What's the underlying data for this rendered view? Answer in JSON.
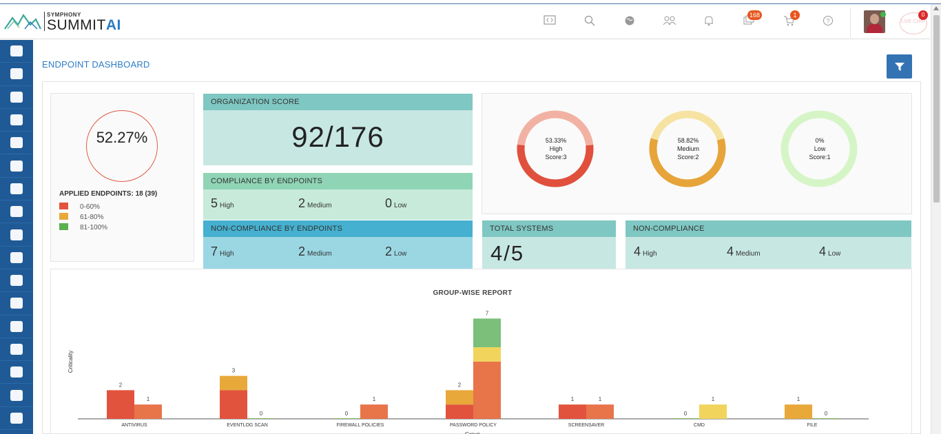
{
  "app": {
    "logo_small": "SYMPHONY",
    "logo_big": "SUMMIT",
    "logo_ai": "AI",
    "notification_badge_168": "168",
    "cart_badge": "1",
    "chat_label": "LIVE CHAT",
    "chat_badge": "0"
  },
  "header_icons": [
    "code-icon",
    "search-icon",
    "globe-icon",
    "users-icon",
    "bell-icon",
    "tickets-icon",
    "cart-icon",
    "help-icon"
  ],
  "sidebar": {
    "items": [
      "dashboard-icon",
      "pie-chart-icon",
      "monitor-icon",
      "ticket-icon",
      "head-settings-icon",
      "document-edit-icon",
      "checklist-icon",
      "catalog-cart-icon",
      "file-export-icon",
      "database-icon",
      "asset-user-icon",
      "tasks-icon",
      "hierarchy-icon",
      "inbox-icon",
      "arrow-back-icon",
      "remote-icon",
      "briefcase-icon"
    ]
  },
  "page": {
    "title": "ENDPOINT DASHBOARD"
  },
  "summary": {
    "percent": "52.27%",
    "applied": "APPLIED ENDPOINTS: 18 (39)",
    "legend": [
      {
        "label": "0-60%",
        "color": "#e2533d"
      },
      {
        "label": "61-80%",
        "color": "#e8a93a"
      },
      {
        "label": "81-100%",
        "color": "#5aaf50"
      }
    ]
  },
  "org_score": {
    "title": "ORGANIZATION SCORE",
    "value": "92/176"
  },
  "compliance": {
    "title": "COMPLIANCE BY ENDPOINTS",
    "high": "5",
    "high_label": "High",
    "medium": "2",
    "medium_label": "Medium",
    "low": "0",
    "low_label": "Low"
  },
  "non_compliance_endpoints": {
    "title": "NON-COMPLIANCE BY ENDPOINTS",
    "high": "7",
    "high_label": "High",
    "medium": "2",
    "medium_label": "Medium",
    "low": "2",
    "low_label": "Low"
  },
  "donuts": [
    {
      "percent": "53.33%",
      "label": "High",
      "score": "Score:3",
      "value": 0.5333,
      "fill": "#e0503c",
      "track": "#f2b2a3"
    },
    {
      "percent": "58.82%",
      "label": "Medium",
      "score": "Score:2",
      "value": 0.5882,
      "fill": "#e6a43a",
      "track": "#f6e3a2"
    },
    {
      "percent": "0%",
      "label": "Low",
      "score": "Score:1",
      "value": 0.0,
      "fill": "#5aaf50",
      "track": "#d6f5c6"
    }
  ],
  "total_systems": {
    "title": "TOTAL SYSTEMS",
    "value": "4/5"
  },
  "non_compliance": {
    "title": "NON-COMPLIANCE",
    "high": "4",
    "high_label": "High",
    "medium": "4",
    "medium_label": "Medium",
    "low": "4",
    "low_label": "Low"
  },
  "chart_data": {
    "type": "bar",
    "title": "GROUP-WISE REPORT",
    "ylabel": "Criticality",
    "xlabel": "Group",
    "categories": [
      "ANTIVIRUS",
      "EVENTLOG SCAN",
      "FIREWALL POLICIES",
      "PASSWORD POLICY",
      "SCREENSAVER",
      "CMD",
      "FILE"
    ],
    "groups": [
      {
        "category": "ANTIVIRUS",
        "bars": [
          {
            "total": 2,
            "segments": [
              {
                "color": "#e2533d",
                "value": 2
              }
            ]
          },
          {
            "total": 1,
            "segments": [
              {
                "color": "#e8744a",
                "value": 1
              }
            ]
          }
        ]
      },
      {
        "category": "EVENTLOG SCAN",
        "bars": [
          {
            "total": 3,
            "segments": [
              {
                "color": "#e2533d",
                "value": 2
              },
              {
                "color": "#e8a93a",
                "value": 1
              }
            ]
          },
          {
            "total": 0,
            "segments": []
          }
        ]
      },
      {
        "category": "FIREWALL POLICIES",
        "bars": [
          {
            "total": 0,
            "segments": []
          },
          {
            "total": 1,
            "segments": [
              {
                "color": "#e8744a",
                "value": 1
              }
            ]
          }
        ]
      },
      {
        "category": "PASSWORD POLICY",
        "bars": [
          {
            "total": 2,
            "segments": [
              {
                "color": "#e2533d",
                "value": 1
              },
              {
                "color": "#e8a93a",
                "value": 1
              }
            ]
          },
          {
            "total": 7,
            "segments": [
              {
                "color": "#e8744a",
                "value": 4
              },
              {
                "color": "#f0d45c",
                "value": 1
              },
              {
                "color": "#7bbf7b",
                "value": 2
              }
            ]
          }
        ]
      },
      {
        "category": "SCREENSAVER",
        "bars": [
          {
            "total": 1,
            "segments": [
              {
                "color": "#e2533d",
                "value": 1
              }
            ]
          },
          {
            "total": 1,
            "segments": [
              {
                "color": "#e8744a",
                "value": 1
              }
            ]
          }
        ]
      },
      {
        "category": "CMD",
        "bars": [
          {
            "total": 0,
            "segments": []
          },
          {
            "total": 1,
            "segments": [
              {
                "color": "#f0d45c",
                "value": 1
              }
            ]
          }
        ]
      },
      {
        "category": "FILE",
        "bars": [
          {
            "total": 1,
            "segments": [
              {
                "color": "#e8a93a",
                "value": 1
              }
            ]
          },
          {
            "total": 0,
            "segments": []
          }
        ]
      }
    ],
    "ylim": [
      0,
      7
    ]
  }
}
